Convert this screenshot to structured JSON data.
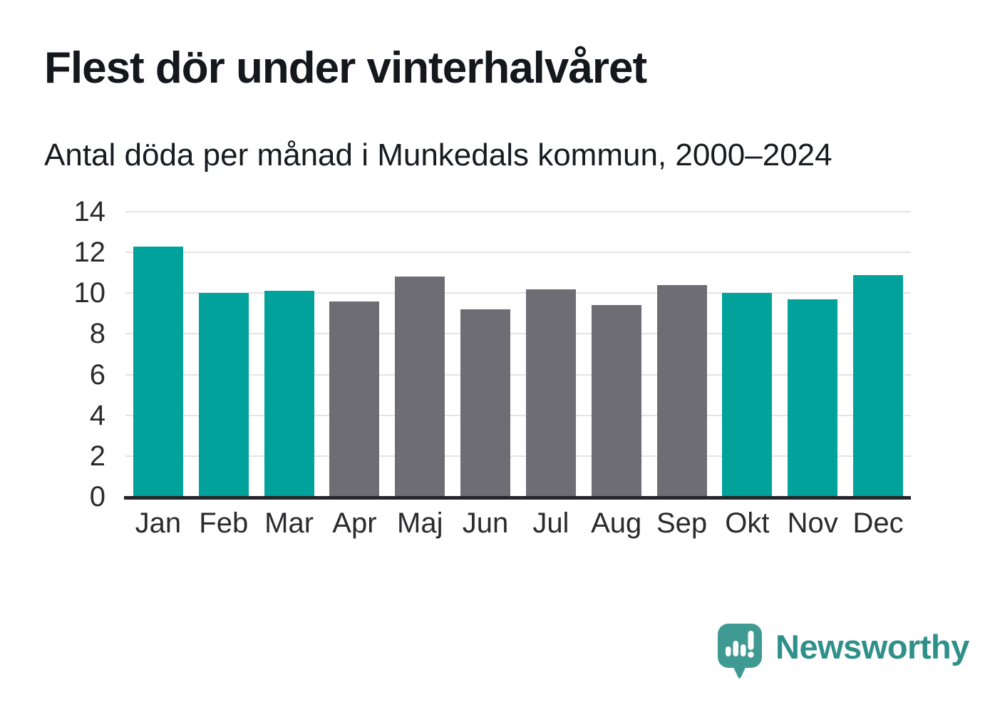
{
  "chart_data": {
    "type": "bar",
    "title": "Flest dör under vinterhalvåret",
    "subtitle": "Antal döda per månad i Munkedals kommun, 2000–2024",
    "categories": [
      "Jan",
      "Feb",
      "Mar",
      "Apr",
      "Maj",
      "Jun",
      "Jul",
      "Aug",
      "Sep",
      "Okt",
      "Nov",
      "Dec"
    ],
    "values": [
      12.3,
      10.0,
      10.1,
      9.6,
      10.8,
      9.2,
      10.2,
      9.4,
      10.4,
      10.0,
      9.7,
      10.9
    ],
    "bar_color_keys": [
      "winter",
      "winter",
      "winter",
      "summer",
      "summer",
      "summer",
      "summer",
      "summer",
      "summer",
      "winter",
      "winter",
      "winter"
    ],
    "palette": {
      "winter": "#00a29b",
      "summer": "#6e6d74"
    },
    "xlabel": "",
    "ylabel": "",
    "ylim": [
      0,
      14
    ],
    "yticks": [
      0,
      2,
      4,
      6,
      8,
      10,
      12,
      14
    ],
    "grid": true,
    "legend": "none",
    "grid_color": "#e4e4e4",
    "axis_color": "#26262a",
    "tick_label_color": "#2b2b2e"
  },
  "footer": {
    "brand": "Newsworthy",
    "brand_text_color": "#2f908a",
    "logo_color": "#3f9a93"
  }
}
